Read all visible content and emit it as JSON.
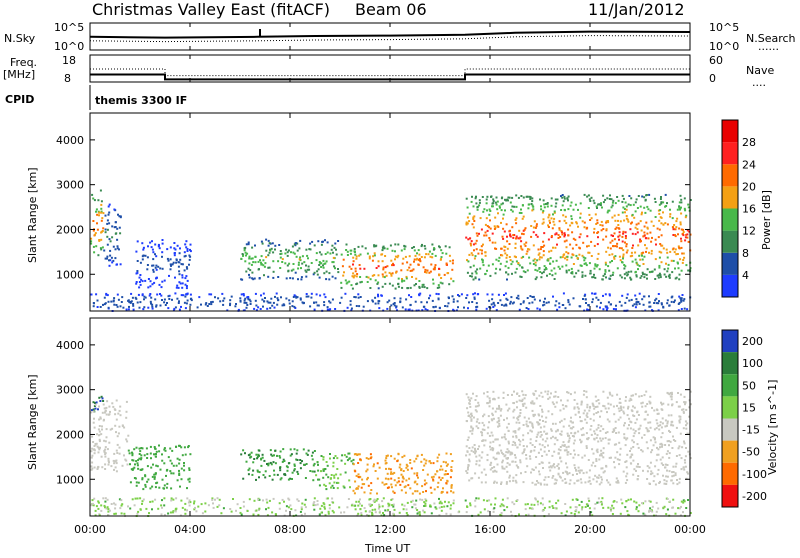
{
  "header": {
    "station": "Christmas Valley East (fitACF)",
    "beam": "Beam 06",
    "date": "11/Jan/2012"
  },
  "nsky_panel": {
    "left_label": "N.Sky",
    "left_ticks": [
      "10^5",
      "10^0"
    ],
    "right_label": "N.Search",
    "right_ticks": [
      "10^5",
      "10^0"
    ],
    "right_legend": "......"
  },
  "freq_panel": {
    "left_label_line1": "Freq.",
    "left_label_line2": "[MHz]",
    "left_ticks": [
      "18",
      "8"
    ],
    "right_label": "Nave",
    "right_ticks": [
      "60",
      "0"
    ],
    "right_legend": "...."
  },
  "cpid_panel": {
    "label": "CPID",
    "value": "themis 3300 IF"
  },
  "time_axis": {
    "title": "Time UT",
    "ticks": [
      "00:00",
      "04:00",
      "08:00",
      "12:00",
      "16:00",
      "20:00",
      "00:00"
    ]
  },
  "range_axis": {
    "label": "Slant Range [km]",
    "ticks": [
      "1000",
      "2000",
      "3000",
      "4000"
    ]
  },
  "power_scale": {
    "label": "Power [dB]",
    "ticks": [
      "4",
      "8",
      "12",
      "16",
      "20",
      "24",
      "28"
    ],
    "colors": [
      "#1e3cff",
      "#1e4fa8",
      "#3a8a52",
      "#48b84a",
      "#f4a014",
      "#ff6a00",
      "#ff2020",
      "#e80000"
    ]
  },
  "velocity_scale": {
    "label": "Velocity [m s^-1]",
    "ticks": [
      "200",
      "100",
      "50",
      "15",
      "-15",
      "-50",
      "-100",
      "-200"
    ],
    "colors": [
      "#2040c0",
      "#2a7d3a",
      "#40a840",
      "#7cd048",
      "#c8c8c0",
      "#f0a020",
      "#ff6a00",
      "#f01010"
    ]
  },
  "chart_data": {
    "type": "heatmap",
    "x_range_hours": [
      0,
      24
    ],
    "y_range_km": [
      180,
      4600
    ],
    "nsky_trace": {
      "x": [
        0,
        3,
        6.7,
        9,
        12,
        15,
        17,
        20,
        24
      ],
      "y": [
        2.8,
        2.6,
        2.8,
        3.0,
        3.1,
        3.3,
        3.8,
        4.1,
        4.0
      ]
    },
    "frequency_mhz": {
      "x": [
        0,
        3,
        3,
        15,
        15,
        24
      ],
      "y": [
        10.5,
        10.5,
        8.3,
        8.3,
        10.5,
        10.5
      ]
    },
    "nave": {
      "x": [
        0,
        3,
        3,
        15,
        15,
        24
      ],
      "y": [
        30,
        30,
        12,
        12,
        30,
        30
      ]
    },
    "power_regions": [
      {
        "t": [
          0.0,
          0.5
        ],
        "r": [
          1300,
          2900
        ],
        "peak_db": 26
      },
      {
        "t": [
          0.5,
          1.2
        ],
        "r": [
          1200,
          2600
        ],
        "peak_db": 10
      },
      {
        "t": [
          1.8,
          4.0
        ],
        "r": [
          700,
          1800
        ],
        "peak_db": 6
      },
      {
        "t": [
          6.0,
          10.0
        ],
        "r": [
          900,
          1800
        ],
        "peak_db": 18
      },
      {
        "t": [
          10.0,
          14.5
        ],
        "r": [
          700,
          1700
        ],
        "peak_db": 28
      },
      {
        "t": [
          15.0,
          24.0
        ],
        "r": [
          900,
          2800
        ],
        "peak_db": 28
      },
      {
        "t": [
          0.0,
          24.0
        ],
        "r": [
          200,
          600
        ],
        "peak_db": 8
      }
    ],
    "velocity_regions": [
      {
        "t": [
          0.0,
          0.5
        ],
        "r": [
          2500,
          3000
        ],
        "vel": 150
      },
      {
        "t": [
          0.0,
          1.5
        ],
        "r": [
          1200,
          2800
        ],
        "vel": 0
      },
      {
        "t": [
          1.5,
          4.0
        ],
        "r": [
          800,
          1800
        ],
        "vel": 60
      },
      {
        "t": [
          6.0,
          9.0
        ],
        "r": [
          1000,
          1700
        ],
        "vel": 70
      },
      {
        "t": [
          9.0,
          10.5
        ],
        "r": [
          800,
          1600
        ],
        "vel": 30
      },
      {
        "t": [
          10.5,
          14.5
        ],
        "r": [
          700,
          1600
        ],
        "vel": -40
      },
      {
        "t": [
          15.0,
          24.0
        ],
        "r": [
          900,
          3000
        ],
        "vel": 0
      },
      {
        "t": [
          0.0,
          24.0
        ],
        "r": [
          200,
          600
        ],
        "vel": 20
      }
    ]
  }
}
